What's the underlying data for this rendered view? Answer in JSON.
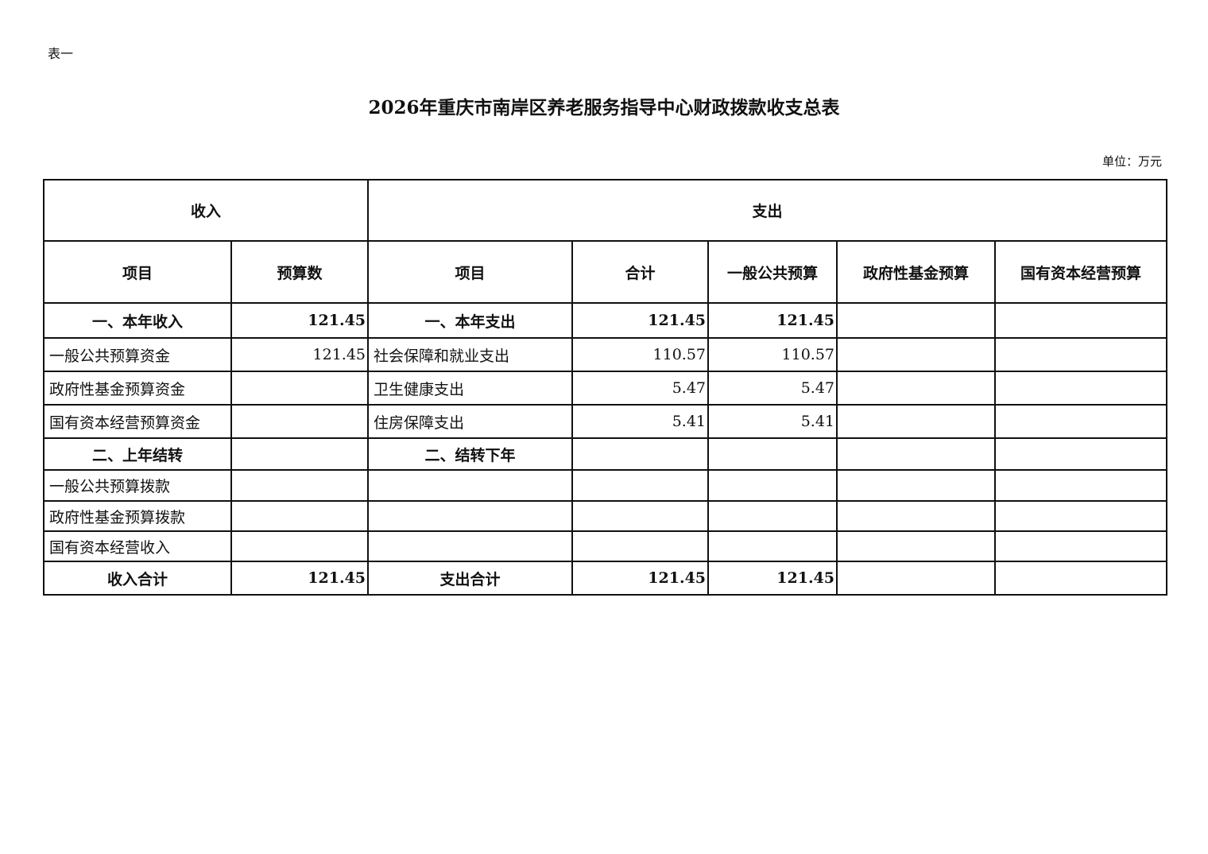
{
  "doc_label": "表一",
  "title": "2026年重庆市南岸区养老服务指导中心财政拨款收支总表",
  "unit": "单位：万元",
  "table": {
    "group_headers": [
      "收入",
      "支出"
    ],
    "column_headers": [
      "项目",
      "预算数",
      "项目",
      "合计",
      "一般公共预算",
      "政府性基金预算",
      "国有资本经营预算"
    ],
    "rows": [
      {
        "bold": true,
        "cells": [
          "一、本年收入",
          "121.45",
          "一、本年支出",
          "121.45",
          "121.45",
          "",
          ""
        ]
      },
      {
        "bold": false,
        "cells": [
          "一般公共预算资金",
          "121.45",
          "社会保障和就业支出",
          "110.57",
          "110.57",
          "",
          ""
        ]
      },
      {
        "bold": false,
        "cells": [
          "政府性基金预算资金",
          "",
          "卫生健康支出",
          "5.47",
          "5.47",
          "",
          ""
        ]
      },
      {
        "bold": false,
        "cells": [
          "国有资本经营预算资金",
          "",
          "住房保障支出",
          "5.41",
          "5.41",
          "",
          ""
        ]
      },
      {
        "bold": true,
        "cells": [
          "二、上年结转",
          "",
          "二、结转下年",
          "",
          "",
          "",
          ""
        ]
      },
      {
        "bold": false,
        "cells": [
          "一般公共预算拨款",
          "",
          "",
          "",
          "",
          "",
          ""
        ]
      },
      {
        "bold": false,
        "cells": [
          "政府性基金预算拨款",
          "",
          "",
          "",
          "",
          "",
          ""
        ]
      },
      {
        "bold": false,
        "cells": [
          "国有资本经营收入",
          "",
          "",
          "",
          "",
          "",
          ""
        ]
      },
      {
        "bold": true,
        "cells": [
          "收入合计",
          "121.45",
          "支出合计",
          "121.45",
          "121.45",
          "",
          ""
        ]
      }
    ]
  }
}
